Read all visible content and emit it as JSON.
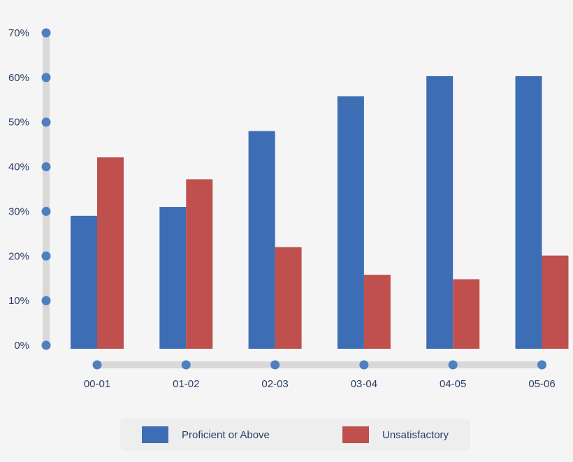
{
  "chart_data": {
    "type": "bar",
    "title": "",
    "xlabel": "",
    "ylabel": "",
    "categories": [
      "00-01",
      "01-02",
      "02-03",
      "03-04",
      "04-05",
      "05-06"
    ],
    "series": [
      {
        "name": "Proficient or Above",
        "color": "#3d6db5",
        "values": [
          29,
          31,
          48,
          55.8,
          60.3,
          60.3
        ]
      },
      {
        "name": "Unsatisfactory",
        "color": "#c0504d",
        "values": [
          42.1,
          37.2,
          22,
          15.8,
          14.8,
          20.1
        ]
      }
    ],
    "ylim": [
      0,
      70
    ],
    "yticks": [
      {
        "value": 0,
        "label": "0%"
      },
      {
        "value": 10,
        "label": "10%"
      },
      {
        "value": 20,
        "label": "20%"
      },
      {
        "value": 30,
        "label": "30%"
      },
      {
        "value": 40,
        "label": "40%"
      },
      {
        "value": 50,
        "label": "50%"
      },
      {
        "value": 60,
        "label": "60%"
      },
      {
        "value": 70,
        "label": "70%"
      }
    ],
    "grid": false,
    "legend_position": "bottom",
    "axis_color": "#d9d9d9",
    "marker_color": "#4f7fc0"
  }
}
